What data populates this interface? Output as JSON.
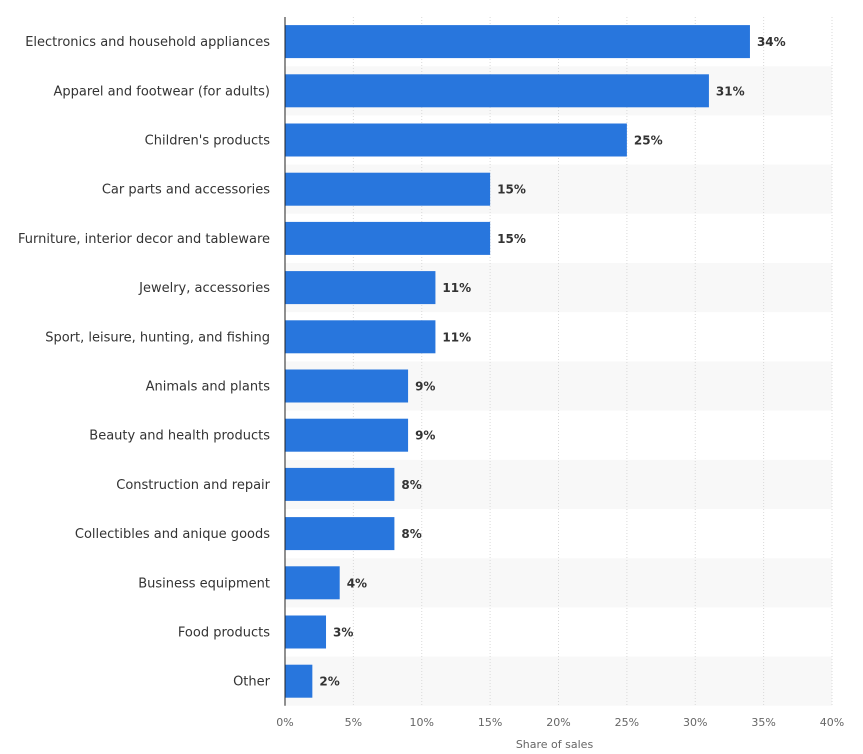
{
  "chart_data": {
    "type": "bar",
    "orientation": "horizontal",
    "categories": [
      "Electronics and household appliances",
      "Apparel and footwear (for adults)",
      "Children's products",
      "Car parts and accessories",
      "Furniture, interior decor and tableware",
      "Jewelry, accessories",
      "Sport, leisure, hunting, and fishing",
      "Animals and plants",
      "Beauty and health products",
      "Construction and repair",
      "Collectibles and anique goods",
      "Business equipment",
      "Food products",
      "Other"
    ],
    "values": [
      34,
      31,
      25,
      15,
      15,
      11,
      11,
      9,
      9,
      8,
      8,
      4,
      3,
      2
    ],
    "value_labels": [
      "34%",
      "31%",
      "25%",
      "15%",
      "15%",
      "11%",
      "11%",
      "9%",
      "9%",
      "8%",
      "8%",
      "4%",
      "3%",
      "2%"
    ],
    "xticks": [
      0,
      5,
      10,
      15,
      20,
      25,
      30,
      35,
      40
    ],
    "xtick_labels": [
      "0%",
      "5%",
      "10%",
      "15%",
      "20%",
      "25%",
      "30%",
      "35%",
      "40%"
    ],
    "xlim": [
      0,
      40
    ],
    "xlabel": "Share of sales",
    "title": "",
    "grid": true,
    "bar_color": "#2876dd",
    "band_color": "#f8f8f8"
  }
}
